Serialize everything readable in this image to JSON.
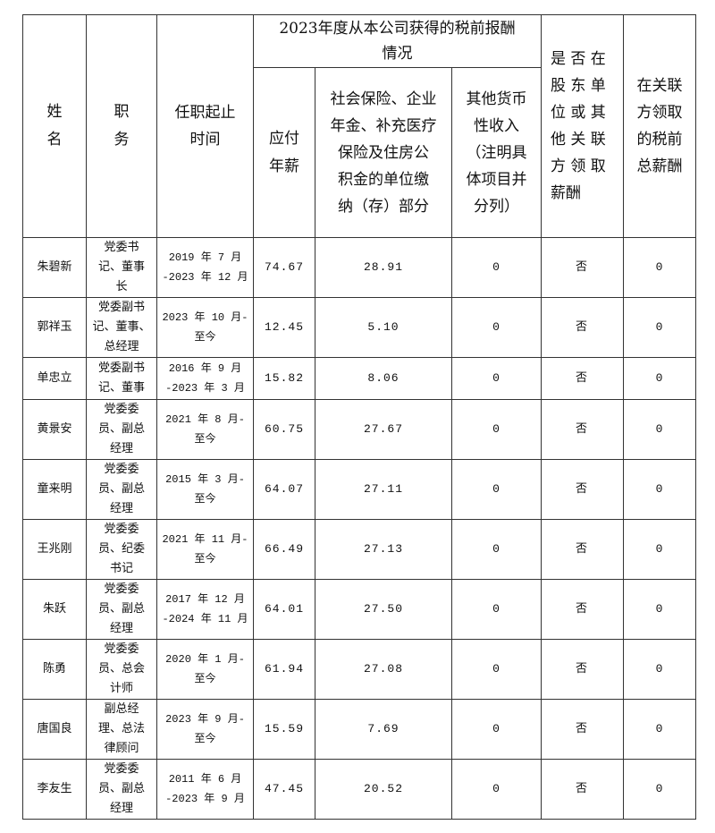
{
  "header": {
    "name": "姓\n名",
    "position": "职\n务",
    "term": "任职起止\n时间",
    "group": "2023年度从本公司获得的税前报酬\n情况",
    "salary": "应付\n年薪",
    "social": "社会保险、企业\n年金、补充医疗\n保险及住房公\n积金的单位缴\n纳（存）部分",
    "other": "其他货币\n性收入\n（注明具\n体项目并\n分列）",
    "related": "是 否 在\n股 东 单\n位 或 其\n他 关 联\n方 领 取\n薪酬",
    "related_total": "在关联\n方领取\n的税前\n总薪酬"
  },
  "rows": [
    {
      "name": "朱碧新",
      "position": "党委书\n记、董事\n长",
      "term": "2019 年 7 月\n-2023 年 12 月",
      "salary": "74.67",
      "social": "28.91",
      "other": "0",
      "related": "否",
      "related_total": "0"
    },
    {
      "name": "郭祥玉",
      "position": "党委副书\n记、董事、\n总经理",
      "term": "2023 年 10 月-\n至今",
      "salary": "12.45",
      "social": "5.10",
      "other": "0",
      "related": "否",
      "related_total": "0"
    },
    {
      "name": "单忠立",
      "position": "党委副书\n记、董事",
      "term": "2016 年 9 月\n-2023 年 3 月",
      "salary": "15.82",
      "social": "8.06",
      "other": "0",
      "related": "否",
      "related_total": "0"
    },
    {
      "name": "黄景安",
      "position": "党委委\n员、副总\n经理",
      "term": "2021 年 8 月-\n至今",
      "salary": "60.75",
      "social": "27.67",
      "other": "0",
      "related": "否",
      "related_total": "0"
    },
    {
      "name": "童来明",
      "position": "党委委\n员、副总\n经理",
      "term": "2015 年 3 月-\n至今",
      "salary": "64.07",
      "social": "27.11",
      "other": "0",
      "related": "否",
      "related_total": "0"
    },
    {
      "name": "王兆刚",
      "position": "党委委\n员、纪委\n书记",
      "term": "2021 年 11 月-\n至今",
      "salary": "66.49",
      "social": "27.13",
      "other": "0",
      "related": "否",
      "related_total": "0"
    },
    {
      "name": "朱跃",
      "position": "党委委\n员、副总\n经理",
      "term": "2017 年 12 月\n-2024 年 11 月",
      "salary": "64.01",
      "social": "27.50",
      "other": "0",
      "related": "否",
      "related_total": "0"
    },
    {
      "name": "陈勇",
      "position": "党委委\n员、总会\n计师",
      "term": "2020 年 1 月-\n至今",
      "salary": "61.94",
      "social": "27.08",
      "other": "0",
      "related": "否",
      "related_total": "0"
    },
    {
      "name": "唐国良",
      "position": "副总经\n理、总法\n律顾问",
      "term": "2023 年 9 月-\n至今",
      "salary": "15.59",
      "social": "7.69",
      "other": "0",
      "related": "否",
      "related_total": "0"
    },
    {
      "name": "李友生",
      "position": "党委委\n员、副总\n经理",
      "term": "2011 年 6 月\n-2023 年 9 月",
      "salary": "47.45",
      "social": "20.52",
      "other": "0",
      "related": "否",
      "related_total": "0"
    }
  ]
}
